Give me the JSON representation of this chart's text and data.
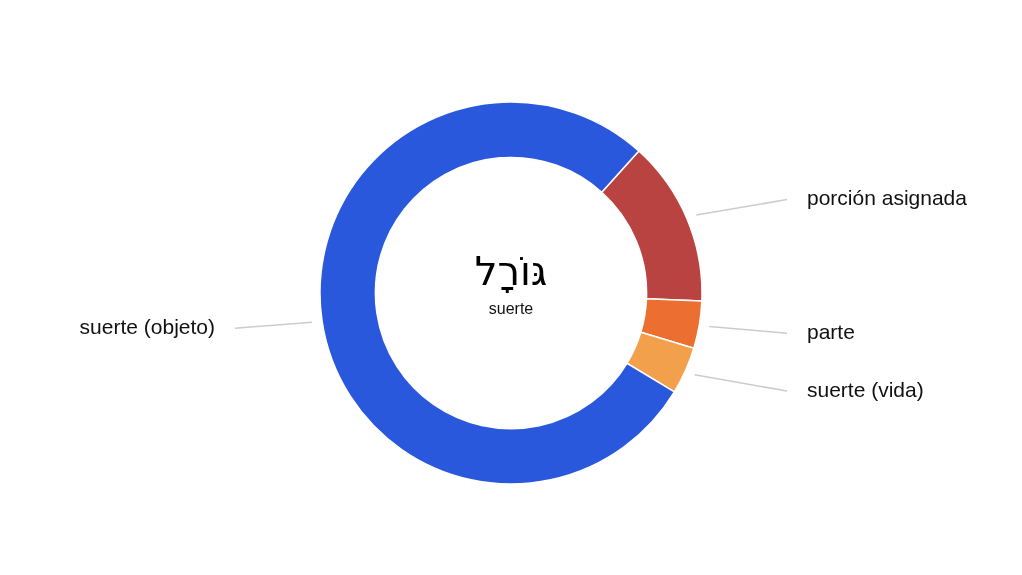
{
  "chart_data": {
    "type": "donut",
    "title": "גּוֹרָל",
    "subtitle": "suerte",
    "categories": [
      "porción asignada",
      "parte",
      "suerte (vida)",
      "suerte (objeto)"
    ],
    "values": [
      14,
      4,
      4,
      78
    ],
    "colors": [
      "#b94340",
      "#ec6e30",
      "#f2a04c",
      "#2a58dc"
    ],
    "legend": false
  }
}
